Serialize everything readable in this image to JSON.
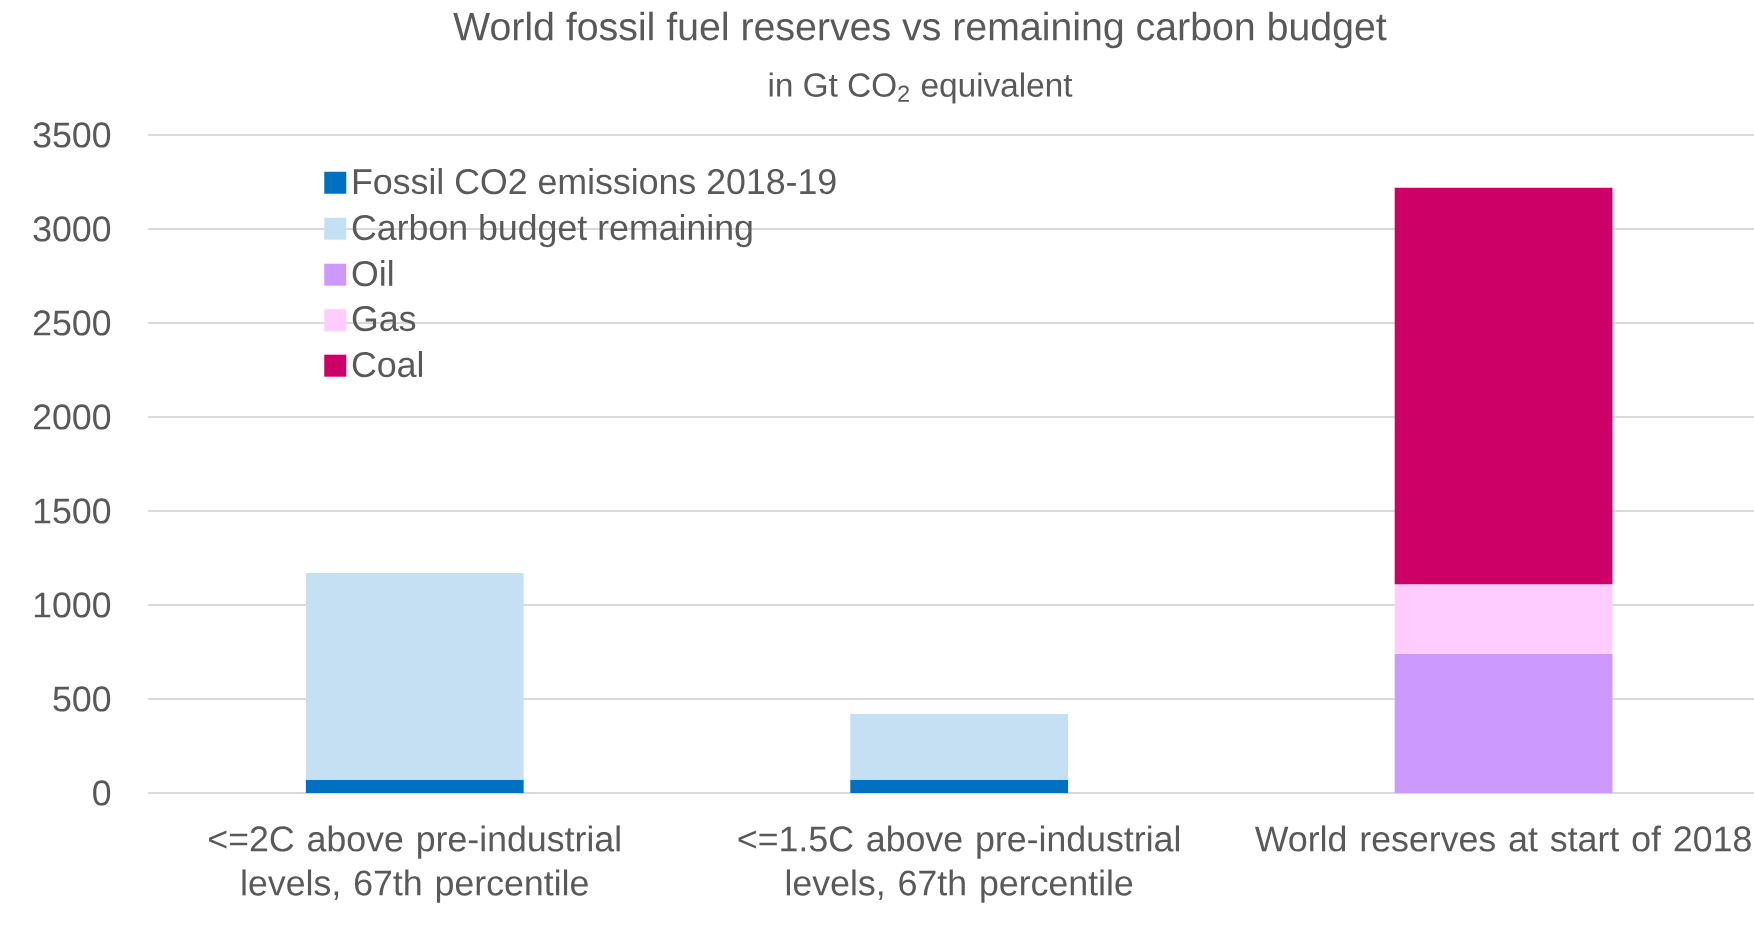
{
  "chart_data": {
    "type": "bar",
    "stacked": true,
    "title": "World fossil fuel reserves vs remaining carbon budget",
    "subtitle": "in Gt CO$_{2}$ equivalent",
    "categories": [
      "<=2C above pre-industrial levels, 67th percentile",
      "<=1.5C above pre-industrial levels, 67th percentile",
      "World reserves at start of 2018"
    ],
    "series": [
      {
        "name": "Fossil CO2 emissions 2018-19",
        "color": "#0070c0",
        "values": [
          70,
          70,
          null
        ]
      },
      {
        "name": "Carbon budget remaining",
        "color": "#c5dff3",
        "values": [
          1100,
          350,
          null
        ]
      },
      {
        "name": "Oil",
        "color": "#cc99ff",
        "values": [
          null,
          null,
          740
        ]
      },
      {
        "name": "Gas",
        "color": "#ffccff",
        "values": [
          null,
          null,
          370
        ]
      },
      {
        "name": "Coal",
        "color": "#cc0066",
        "values": [
          null,
          null,
          2110
        ]
      }
    ],
    "ylim": [
      0,
      3500
    ],
    "yticks": [
      0,
      500,
      1000,
      1500,
      2000,
      2500,
      3000,
      3500
    ],
    "grid": "y",
    "legend": "top left"
  }
}
